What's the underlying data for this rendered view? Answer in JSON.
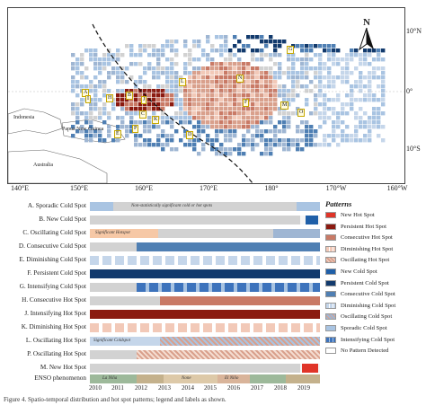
{
  "map": {
    "latitude_labels": [
      "10°N",
      "0°",
      "10°S"
    ],
    "longitude_labels": [
      "140°E",
      "150°E",
      "160°E",
      "170°E",
      "180°",
      "170°W",
      "160°W"
    ],
    "place_labels": {
      "indonesia": "Indonesia",
      "png": "Papua New Guinea",
      "australia": "Australia"
    },
    "north_label": "N",
    "map_letters": [
      "A",
      "B",
      "C",
      "D",
      "E",
      "F",
      "G",
      "H",
      "I",
      "J",
      "K",
      "L",
      "M",
      "N",
      "O",
      "P"
    ]
  },
  "timeseries": {
    "rows": [
      {
        "label": "A. Sporadic Cold Spot",
        "note": "Non-statistically significant cold or hot spots"
      },
      {
        "label": "B. New Cold Spot"
      },
      {
        "label": "C. Oscillating Cold Spot",
        "note": "Significant Hotspot"
      },
      {
        "label": "D. Consecutive Cold Spot"
      },
      {
        "label": "E. Diminishing Cold Spot"
      },
      {
        "label": "F. Persistent Cold Spot"
      },
      {
        "label": "G. Intensifying Cold Spot"
      },
      {
        "label": "H. Consecutive Hot Spot"
      },
      {
        "label": "J. Intensifying Hot Spot"
      },
      {
        "label": "K. Diminishing Hot Spot"
      },
      {
        "label": "L. Oscillating Hot Spot",
        "note": "Significant Coldspot"
      },
      {
        "label": "P. Oscillating Hot Spot"
      },
      {
        "label": "M. New Hot Spot"
      },
      {
        "label": "ENSO phenomenon",
        "enso_notes": [
          "La Niña",
          "None",
          "El Niño"
        ]
      }
    ],
    "years": [
      "2010",
      "2011",
      "2012",
      "2013",
      "2014",
      "2015",
      "2016",
      "2017",
      "2018",
      "2019"
    ]
  },
  "legend": {
    "title": "Patterns",
    "items": [
      {
        "label": "New Hot Spot",
        "color": "#e03428"
      },
      {
        "label": "Persistent Hot Spot",
        "color": "#8b1a10"
      },
      {
        "label": "Consecutive Hot Spot",
        "color": "#c97a66"
      },
      {
        "label": "Diminishing Hot Spot",
        "color": "#f2c9b8"
      },
      {
        "label": "Oscillating Hot Spot",
        "color": "#d9a08c"
      },
      {
        "label": "New Cold Spot",
        "color": "#1f5fa8"
      },
      {
        "label": "Persistent Cold Spot",
        "color": "#123a6d"
      },
      {
        "label": "Consecutive Cold Spot",
        "color": "#4f7fb3"
      },
      {
        "label": "Diminishing Cold Spot",
        "color": "#c5d6ea"
      },
      {
        "label": "Oscillating Cold Spot",
        "color": "#9fb6d3"
      },
      {
        "label": "Sporadic Cold Spot",
        "color": "#a9c4e2"
      },
      {
        "label": "Intensifying Cold Spot",
        "color": "#3d73bc"
      },
      {
        "label": "No Pattern Detected",
        "color": "#ffffff"
      }
    ]
  },
  "caption": "Figure 4. Spatio-temporal distribution and hot spot patterns; legend and labels as shown."
}
